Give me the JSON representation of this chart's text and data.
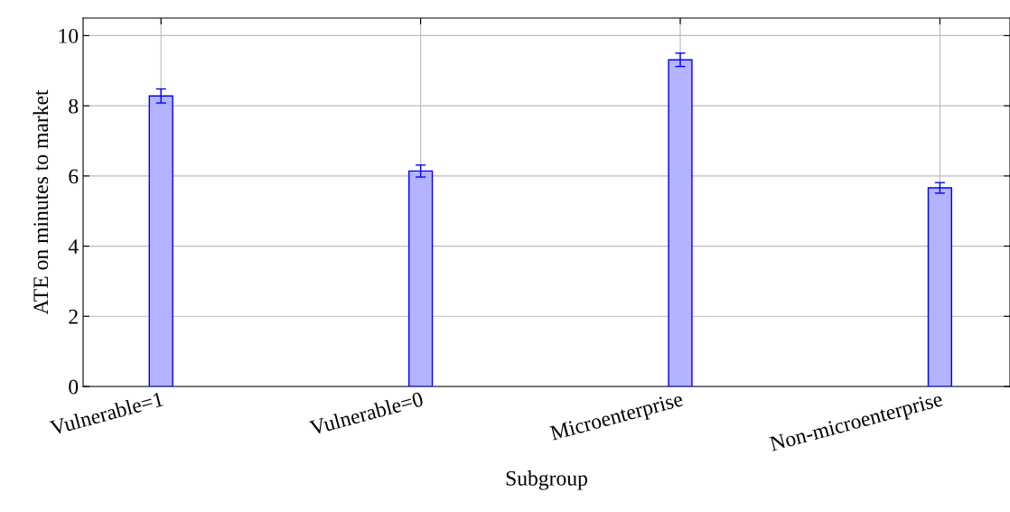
{
  "chart_data": {
    "type": "bar",
    "xlabel": "Subgroup",
    "ylabel": "ATE on minutes to market",
    "categories": [
      "Vulnerable=1",
      "Vulnerable=0",
      "Microenterprise",
      "Non-microenterprise"
    ],
    "series": [
      {
        "color": "#b3b3ff",
        "values": [
          8.28,
          6.14,
          9.31,
          5.66
        ],
        "errors": [
          0.2,
          0.17,
          0.19,
          0.15
        ]
      }
    ],
    "ylim": [
      0,
      10.5
    ],
    "yticks": [
      0,
      2,
      4,
      6,
      8,
      10
    ],
    "grid": true
  }
}
